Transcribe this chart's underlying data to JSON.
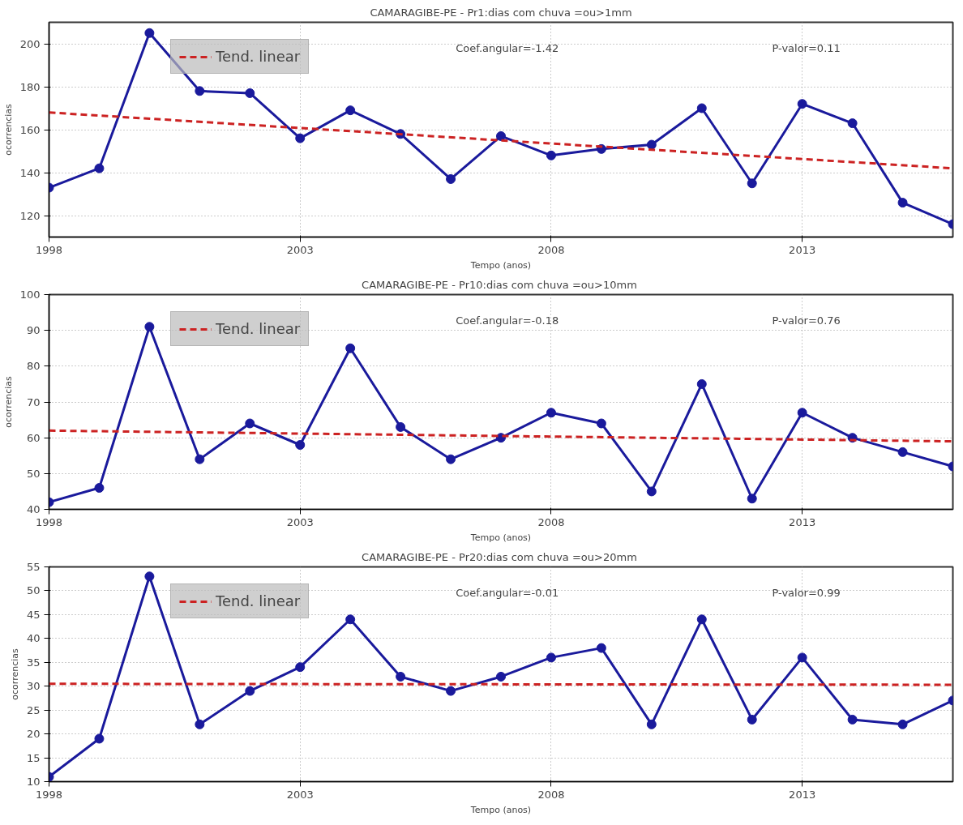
{
  "chart_data": [
    {
      "type": "line",
      "title": "CAMARAGIBE-PE - Pr1:dias com chuva =ou>1mm",
      "xlabel": "Tempo (anos)",
      "ylabel": "ocorrencias",
      "xlim": [
        1998,
        2016
      ],
      "xticks": [
        1998,
        2003,
        2008,
        2013
      ],
      "ylim": [
        110,
        210
      ],
      "yticks": [
        120,
        140,
        160,
        180,
        200
      ],
      "grid": true,
      "legend": "top left",
      "annotations": [
        "Coef.angular=-1.42",
        "P-valor=0.11"
      ],
      "series": [
        {
          "color": "#1a1a9c",
          "marker": "circle",
          "x": [
            1998,
            1999,
            2000,
            2001,
            2002,
            2003,
            2004,
            2005,
            2006,
            2007,
            2008,
            2009,
            2010,
            2011,
            2012,
            2013,
            2014,
            2015,
            2016
          ],
          "values": [
            133,
            142,
            205,
            178,
            177,
            156,
            169,
            158,
            137,
            157,
            148,
            151,
            153,
            170,
            135,
            172,
            163,
            126,
            116
          ]
        },
        {
          "name": "Tend. linear",
          "color": "#cc2222",
          "line_style": "dashed",
          "x": [
            1998,
            2016
          ],
          "values": [
            168,
            142
          ]
        }
      ]
    },
    {
      "type": "line",
      "title": "CAMARAGIBE-PE  - Pr10:dias com chuva =ou>10mm",
      "xlabel": "Tempo (anos)",
      "ylabel": "ocorrencias",
      "xlim": [
        1998,
        2016
      ],
      "xticks": [
        1998,
        2003,
        2008,
        2013
      ],
      "ylim": [
        40,
        100
      ],
      "yticks": [
        40,
        50,
        60,
        70,
        80,
        90,
        100
      ],
      "grid": true,
      "legend": "top left",
      "annotations": [
        "Coef.angular=-0.18",
        "P-valor=0.76"
      ],
      "series": [
        {
          "color": "#1a1a9c",
          "marker": "circle",
          "x": [
            1998,
            1999,
            2000,
            2001,
            2002,
            2003,
            2004,
            2005,
            2006,
            2007,
            2008,
            2009,
            2010,
            2011,
            2012,
            2013,
            2014,
            2015,
            2016
          ],
          "values": [
            42,
            46,
            91,
            54,
            64,
            58,
            85,
            63,
            54,
            60,
            67,
            64,
            45,
            75,
            43,
            67,
            60,
            56,
            52
          ]
        },
        {
          "name": "Tend. linear",
          "color": "#cc2222",
          "line_style": "dashed",
          "x": [
            1998,
            2016
          ],
          "values": [
            62,
            59
          ]
        }
      ]
    },
    {
      "type": "line",
      "title": "CAMARAGIBE-PE  - Pr20:dias com chuva =ou>20mm",
      "xlabel": "Tempo (anos)",
      "ylabel": "ocorrencias",
      "xlim": [
        1998,
        2016
      ],
      "xticks": [
        1998,
        2003,
        2008,
        2013
      ],
      "ylim": [
        10,
        55
      ],
      "yticks": [
        10,
        15,
        20,
        25,
        30,
        35,
        40,
        45,
        50,
        55
      ],
      "grid": true,
      "legend": "top left",
      "annotations": [
        "Coef.angular=-0.01",
        "P-valor=0.99"
      ],
      "series": [
        {
          "color": "#1a1a9c",
          "marker": "circle",
          "x": [
            1998,
            1999,
            2000,
            2001,
            2002,
            2003,
            2004,
            2005,
            2006,
            2007,
            2008,
            2009,
            2010,
            2011,
            2012,
            2013,
            2014,
            2015,
            2016
          ],
          "values": [
            11,
            19,
            53,
            22,
            29,
            34,
            44,
            32,
            29,
            32,
            36,
            38,
            22,
            44,
            23,
            36,
            23,
            22,
            27
          ]
        },
        {
          "name": "Tend. linear",
          "color": "#cc2222",
          "line_style": "dashed",
          "x": [
            1998,
            2016
          ],
          "values": [
            30.5,
            30.3
          ]
        }
      ]
    }
  ]
}
